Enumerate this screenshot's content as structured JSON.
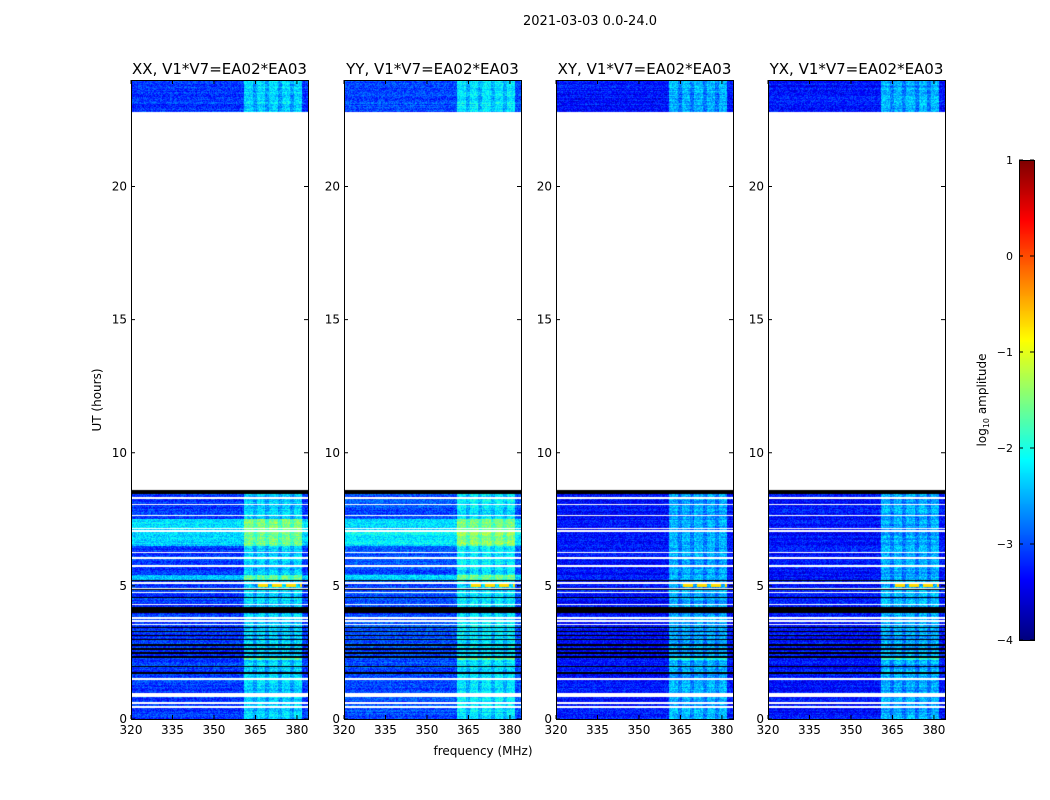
{
  "chart_data": {
    "type": "heatmap",
    "suptitle": "2021-03-03 0.0-24.0",
    "xlabel": "frequency (MHz)",
    "ylabel": "UT (hours)",
    "xlim": [
      320,
      384
    ],
    "ylim": [
      0,
      24
    ],
    "xticks": [
      320,
      335,
      350,
      365,
      380
    ],
    "yticks": [
      0,
      5,
      10,
      15,
      20
    ],
    "panels": [
      {
        "title": "XX, V1*V7=EA02*EA03",
        "base_level": -3.1,
        "bright_band_6_5_to_7_5h": true
      },
      {
        "title": "YY, V1*V7=EA02*EA03",
        "base_level": -3.0,
        "bright_band_6_5_to_7_5h": true
      },
      {
        "title": "XY, V1*V7=EA02*EA03",
        "base_level": -3.3,
        "bright_band_6_5_to_7_5h": false
      },
      {
        "title": "YX, V1*V7=EA02*EA03",
        "base_level": -3.3,
        "bright_band_6_5_to_7_5h": false
      }
    ],
    "data_time_ranges_hours": [
      [
        0,
        8.6
      ],
      [
        22.8,
        24
      ]
    ],
    "rfi_band_mhz": [
      361,
      382
    ],
    "strong_rfi_time_hours": 5.0,
    "colorbar": {
      "label": "log10 amplitude",
      "label_main": "log",
      "label_sub": "10",
      "label_rest": " amplitude",
      "colormap": "jet",
      "range": [
        -4,
        1
      ],
      "ticks": [
        1,
        0,
        -1,
        -2,
        -3,
        -4
      ],
      "tick_labels": [
        "1",
        "0",
        "−1",
        "−2",
        "−3",
        "−4"
      ]
    }
  }
}
